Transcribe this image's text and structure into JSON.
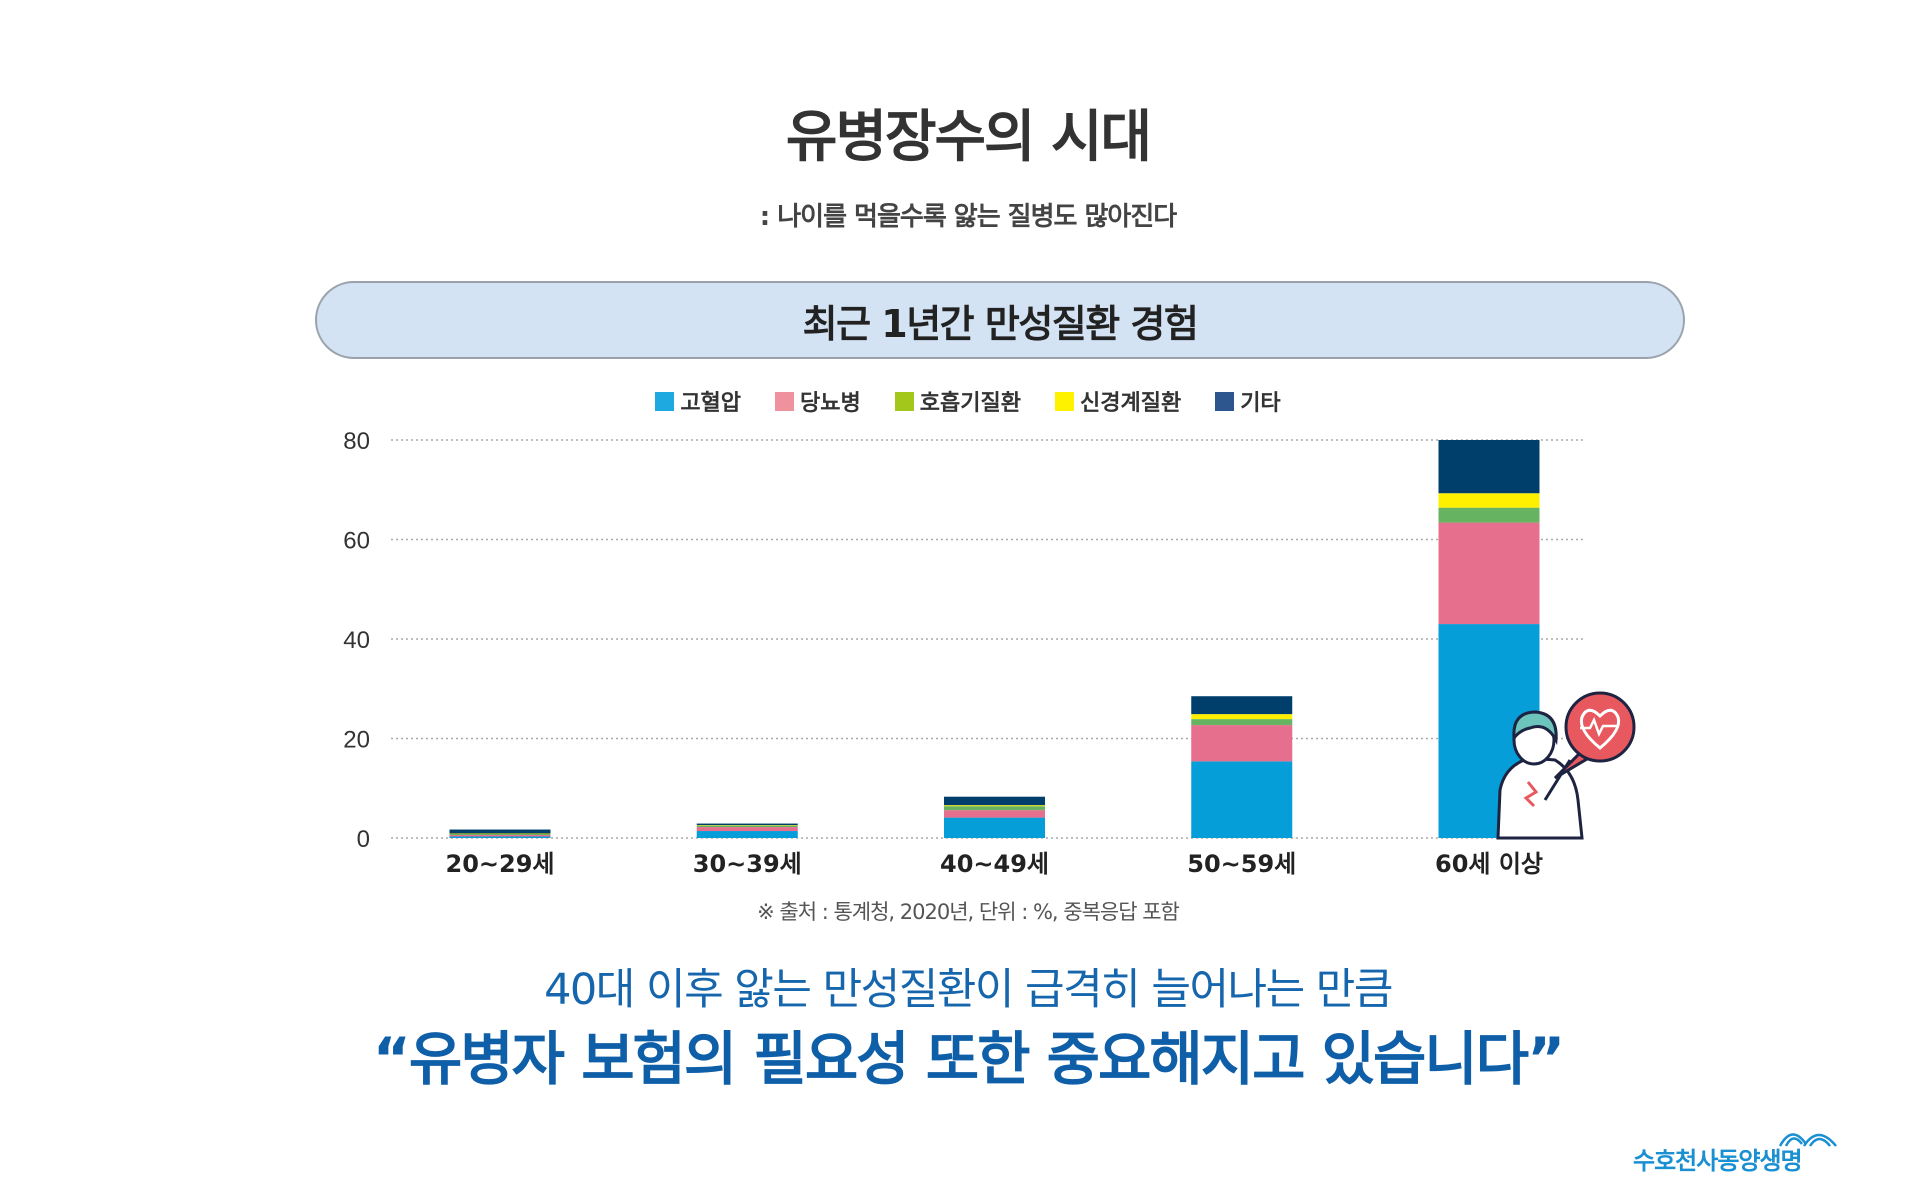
{
  "title": "유병장수의 시대",
  "subtitle": ": 나이를 먹을수록 앓는 질병도 많아진다",
  "chart_data": {
    "type": "bar",
    "stacked": true,
    "title": "최근 1년간 만성질환 경험",
    "categories": [
      "20~29세",
      "30~39세",
      "40~49세",
      "50~59세",
      "60세 이상"
    ],
    "series": [
      {
        "name": "고혈압",
        "color": "#069ed8",
        "legend_color": "#1ea9e1",
        "values": [
          0.3,
          1.4,
          4.1,
          15.4,
          43.0
        ]
      },
      {
        "name": "당뇨병",
        "color": "#e76f8e",
        "legend_color": "#f0919e",
        "values": [
          0.3,
          0.8,
          1.5,
          7.3,
          20.4
        ]
      },
      {
        "name": "호흡기질환",
        "color": "#66b462",
        "legend_color": "#a3c71b",
        "values": [
          0.2,
          0.3,
          0.8,
          1.2,
          3.0
        ]
      },
      {
        "name": "신경계질환",
        "color": "#fff000",
        "legend_color": "#fff200",
        "values": [
          0.1,
          0.1,
          0.2,
          1.0,
          2.9
        ]
      },
      {
        "name": "기타",
        "color": "#003f6b",
        "legend_color": "#2d558e",
        "values": [
          0.8,
          0.3,
          1.7,
          3.6,
          10.7
        ]
      }
    ],
    "yticks": [
      0,
      20,
      40,
      60,
      80
    ],
    "ylim": [
      0,
      80
    ],
    "grid": true,
    "legend_placement": "top-center"
  },
  "source": "※ 출처 : 통계청, 2020년, 단위 : %, 중복응답 포함",
  "message_line1": "40대 이후 앓는 만성질환이 급격히 늘어나는 만큼",
  "message_line2": "“유병자 보험의 필요성 또한 중요해지고 있습니다”",
  "logo": {
    "text": "수호천사동양생명",
    "icon": "wave-logo-icon",
    "color": "#1a8fd1"
  },
  "illustration": {
    "icon": "person-heartbeat-icon",
    "accent": "#e8585f"
  }
}
